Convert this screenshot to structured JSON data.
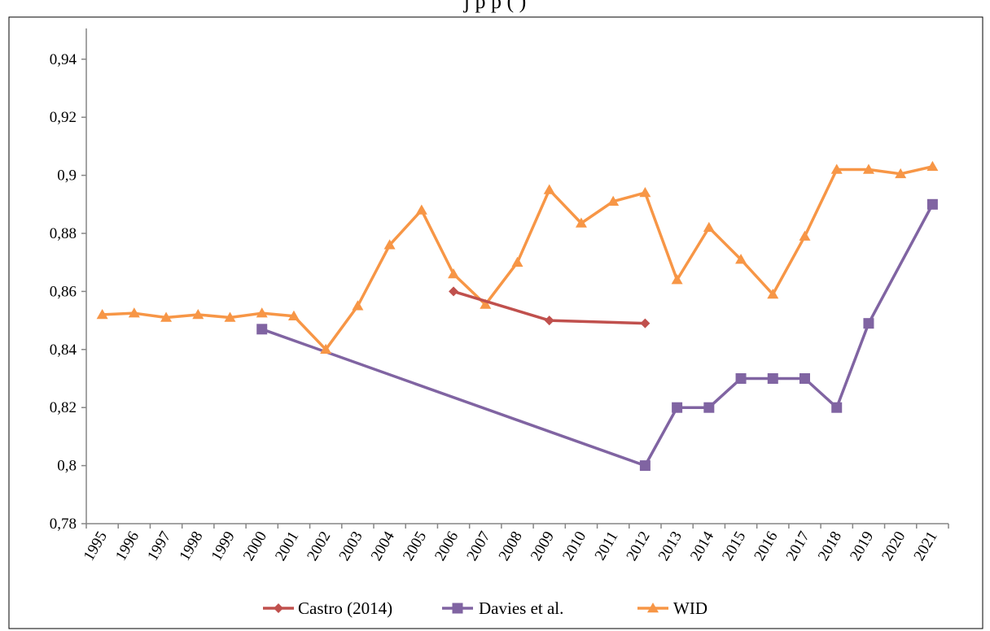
{
  "page": {
    "title_partial": "j                                           p             p           (                   )"
  },
  "chart_data": {
    "type": "line",
    "title": "",
    "xlabel": "",
    "ylabel": "",
    "ylim": [
      0.78,
      0.95
    ],
    "y_ticks": [
      "0,78",
      "0,8",
      "0,82",
      "0,84",
      "0,86",
      "0,88",
      "0,9",
      "0,92",
      "0,94"
    ],
    "y_tick_values": [
      0.78,
      0.8,
      0.82,
      0.84,
      0.86,
      0.88,
      0.9,
      0.92,
      0.94
    ],
    "grid": false,
    "legend_position": "bottom",
    "categories": [
      "1995",
      "1996",
      "1997",
      "1998",
      "1999",
      "2000",
      "2001",
      "2002",
      "2003",
      "2004",
      "2005",
      "2006",
      "2007",
      "2008",
      "2009",
      "2010",
      "2011",
      "2012",
      "2013",
      "2014",
      "2015",
      "2016",
      "2017",
      "2018",
      "2019",
      "2020",
      "2021"
    ],
    "series": [
      {
        "name": "Castro (2014)",
        "color": "#c0504d",
        "marker": "diamond",
        "values": [
          null,
          null,
          null,
          null,
          null,
          null,
          null,
          null,
          null,
          null,
          null,
          0.86,
          null,
          null,
          0.85,
          null,
          null,
          0.849,
          null,
          null,
          null,
          null,
          null,
          null,
          null,
          null,
          null
        ]
      },
      {
        "name": "Davies et al.",
        "color": "#8064a2",
        "marker": "square",
        "values": [
          null,
          null,
          null,
          null,
          null,
          0.847,
          null,
          null,
          null,
          null,
          null,
          null,
          null,
          null,
          null,
          null,
          null,
          0.8,
          0.82,
          0.82,
          0.83,
          0.83,
          0.83,
          0.82,
          0.849,
          null,
          0.89
        ]
      },
      {
        "name": "WID",
        "color": "#f79646",
        "marker": "triangle",
        "values": [
          0.852,
          0.8525,
          0.851,
          0.852,
          0.851,
          0.8525,
          0.8515,
          0.84,
          0.855,
          0.876,
          0.888,
          0.866,
          0.8555,
          0.87,
          0.895,
          0.8835,
          0.891,
          0.894,
          0.864,
          0.882,
          0.871,
          0.859,
          0.879,
          0.902,
          0.902,
          0.9005,
          0.903
        ]
      }
    ]
  }
}
